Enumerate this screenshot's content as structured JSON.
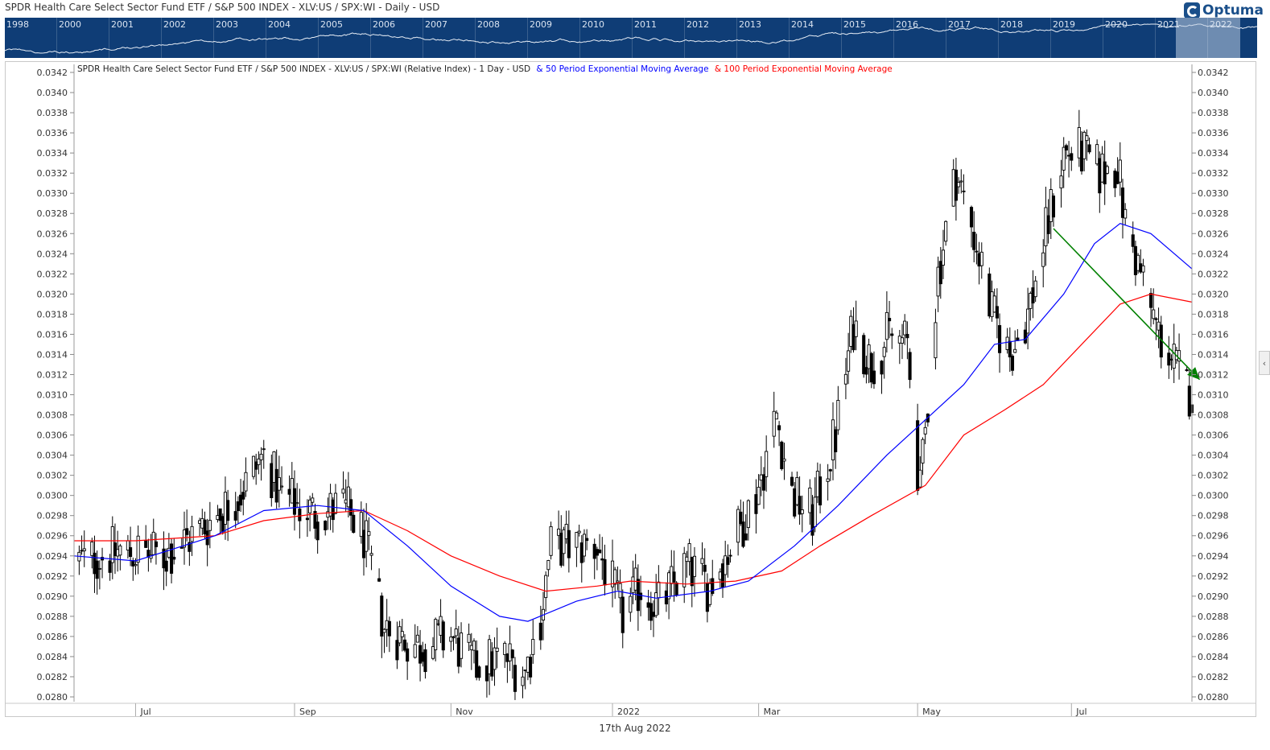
{
  "header": {
    "title": "SPDR Health Care Select Sector Fund ETF / S&P 500 INDEX - XLV:US / SPX:WI - Daily - USD",
    "logo_text": "Optuma"
  },
  "overview": {
    "years": [
      "1998",
      "2000",
      "2001",
      "2002",
      "2003",
      "2004",
      "2005",
      "2006",
      "2007",
      "2008",
      "2009",
      "2010",
      "2011",
      "2012",
      "2013",
      "2014",
      "2015",
      "2016",
      "2017",
      "2018",
      "2019",
      "2020",
      "2021",
      "2022"
    ]
  },
  "footer": {
    "date": "17th Aug 2022"
  },
  "side_tab": {
    "glyph": "‹"
  },
  "colors": {
    "price": "#000000",
    "ema50": "#0000ff",
    "ema100": "#ff0000",
    "trend": "#008000",
    "overview_bg": "#0f3d76"
  },
  "chart_data": {
    "type": "candlestick",
    "legend": {
      "main": "SPDR Health Care Select Sector Fund ETF / S&P 500 INDEX - XLV:US / SPX:WI (Relative Index) - 1 Day - USD",
      "ema50": "& 50 Period Exponential Moving Average",
      "ema100": "& 100 Period Exponential Moving Average"
    },
    "x_labels": [
      "Jul",
      "Sep",
      "Nov",
      "2022",
      "Mar",
      "May",
      "Jul"
    ],
    "x_label_dates": [
      "2021-07-01",
      "2021-09-01",
      "2021-11-01",
      "2022-01-03",
      "2022-03-01",
      "2022-05-02",
      "2022-07-01"
    ],
    "x_range": [
      "2021-06-07",
      "2022-08-17"
    ],
    "ylim": [
      0.028,
      0.0342
    ],
    "yticks": [
      "0.0342",
      "0.0340",
      "0.0338",
      "0.0336",
      "0.0334",
      "0.0332",
      "0.0330",
      "0.0328",
      "0.0326",
      "0.0324",
      "0.0322",
      "0.0320",
      "0.0318",
      "0.0316",
      "0.0314",
      "0.0312",
      "0.0310",
      "0.0308",
      "0.0306",
      "0.0304",
      "0.0302",
      "0.0300",
      "0.0298",
      "0.0296",
      "0.0294",
      "0.0292",
      "0.0290",
      "0.0288",
      "0.0286",
      "0.0284",
      "0.0282",
      "0.0280"
    ],
    "price_path": [
      [
        "2021-06-10",
        0.02935
      ],
      [
        "2021-06-25",
        0.02945
      ],
      [
        "2021-07-12",
        0.0294
      ],
      [
        "2021-07-26",
        0.02965
      ],
      [
        "2021-08-10",
        0.03
      ],
      [
        "2021-08-20",
        0.0304
      ],
      [
        "2021-08-27",
        0.03
      ],
      [
        "2021-09-10",
        0.0298
      ],
      [
        "2021-09-20",
        0.0299
      ],
      [
        "2021-09-28",
        0.0296
      ],
      [
        "2021-10-06",
        0.0287
      ],
      [
        "2021-10-20",
        0.0285
      ],
      [
        "2021-11-01",
        0.0286
      ],
      [
        "2021-11-10",
        0.0283
      ],
      [
        "2021-11-22",
        0.0284
      ],
      [
        "2021-11-30",
        0.02825
      ],
      [
        "2021-12-06",
        0.0288
      ],
      [
        "2021-12-10",
        0.0295
      ],
      [
        "2021-12-17",
        0.0295
      ],
      [
        "2021-12-28",
        0.0295
      ],
      [
        "2022-01-07",
        0.0288
      ],
      [
        "2022-01-14",
        0.0291
      ],
      [
        "2022-01-21",
        0.0289
      ],
      [
        "2022-02-01",
        0.0293
      ],
      [
        "2022-02-10",
        0.0291
      ],
      [
        "2022-02-20",
        0.0296
      ],
      [
        "2022-02-28",
        0.03
      ],
      [
        "2022-03-08",
        0.0308
      ],
      [
        "2022-03-14",
        0.03
      ],
      [
        "2022-03-22",
        0.0298
      ],
      [
        "2022-03-31",
        0.0306
      ],
      [
        "2022-04-07",
        0.0317
      ],
      [
        "2022-04-14",
        0.0313
      ],
      [
        "2022-04-21",
        0.0316
      ],
      [
        "2022-04-28",
        0.0315
      ],
      [
        "2022-05-03",
        0.03
      ],
      [
        "2022-05-10",
        0.0322
      ],
      [
        "2022-05-17",
        0.0332
      ],
      [
        "2022-05-24",
        0.0326
      ],
      [
        "2022-05-31",
        0.0318
      ],
      [
        "2022-06-07",
        0.0314
      ],
      [
        "2022-06-14",
        0.0318
      ],
      [
        "2022-06-21",
        0.0326
      ],
      [
        "2022-06-28",
        0.0334
      ],
      [
        "2022-07-05",
        0.0334
      ],
      [
        "2022-07-12",
        0.0332
      ],
      [
        "2022-07-19",
        0.0333
      ],
      [
        "2022-07-22",
        0.0327
      ],
      [
        "2022-07-28",
        0.0322
      ],
      [
        "2022-08-04",
        0.0316
      ],
      [
        "2022-08-10",
        0.0313
      ],
      [
        "2022-08-17",
        0.031
      ]
    ],
    "ema50": [
      [
        "2021-06-07",
        0.0294
      ],
      [
        "2021-07-01",
        0.02935
      ],
      [
        "2021-08-01",
        0.0296
      ],
      [
        "2021-08-20",
        0.02985
      ],
      [
        "2021-09-10",
        0.0299
      ],
      [
        "2021-09-28",
        0.02985
      ],
      [
        "2021-10-15",
        0.0295
      ],
      [
        "2021-11-01",
        0.0291
      ],
      [
        "2021-11-20",
        0.0288
      ],
      [
        "2021-12-01",
        0.02875
      ],
      [
        "2021-12-20",
        0.02895
      ],
      [
        "2022-01-05",
        0.02905
      ],
      [
        "2022-01-20",
        0.02898
      ],
      [
        "2022-02-10",
        0.02905
      ],
      [
        "2022-02-25",
        0.02915
      ],
      [
        "2022-03-15",
        0.0295
      ],
      [
        "2022-04-01",
        0.0299
      ],
      [
        "2022-04-20",
        0.0304
      ],
      [
        "2022-05-05",
        0.03075
      ],
      [
        "2022-05-20",
        0.0311
      ],
      [
        "2022-06-01",
        0.0315
      ],
      [
        "2022-06-13",
        0.03155
      ],
      [
        "2022-06-28",
        0.032
      ],
      [
        "2022-07-10",
        0.0325
      ],
      [
        "2022-07-20",
        0.0327
      ],
      [
        "2022-08-01",
        0.0326
      ],
      [
        "2022-08-17",
        0.03225
      ]
    ],
    "ema100": [
      [
        "2021-06-07",
        0.02955
      ],
      [
        "2021-07-01",
        0.02955
      ],
      [
        "2021-08-01",
        0.0296
      ],
      [
        "2021-08-20",
        0.02975
      ],
      [
        "2021-09-10",
        0.02982
      ],
      [
        "2021-09-28",
        0.02985
      ],
      [
        "2021-10-15",
        0.02965
      ],
      [
        "2021-11-01",
        0.0294
      ],
      [
        "2021-11-20",
        0.0292
      ],
      [
        "2021-12-08",
        0.02905
      ],
      [
        "2021-12-28",
        0.0291
      ],
      [
        "2022-01-10",
        0.02915
      ],
      [
        "2022-02-01",
        0.02912
      ],
      [
        "2022-02-20",
        0.02915
      ],
      [
        "2022-03-10",
        0.02925
      ],
      [
        "2022-03-25",
        0.0295
      ],
      [
        "2022-04-14",
        0.0298
      ],
      [
        "2022-05-05",
        0.0301
      ],
      [
        "2022-05-20",
        0.0306
      ],
      [
        "2022-06-05",
        0.03085
      ],
      [
        "2022-06-20",
        0.0311
      ],
      [
        "2022-07-05",
        0.0315
      ],
      [
        "2022-07-20",
        0.0319
      ],
      [
        "2022-08-01",
        0.032
      ],
      [
        "2022-08-17",
        0.03192
      ]
    ],
    "trend_line": {
      "from": [
        "2022-06-24",
        0.03265
      ],
      "to": [
        "2022-08-20",
        0.03115
      ]
    }
  }
}
